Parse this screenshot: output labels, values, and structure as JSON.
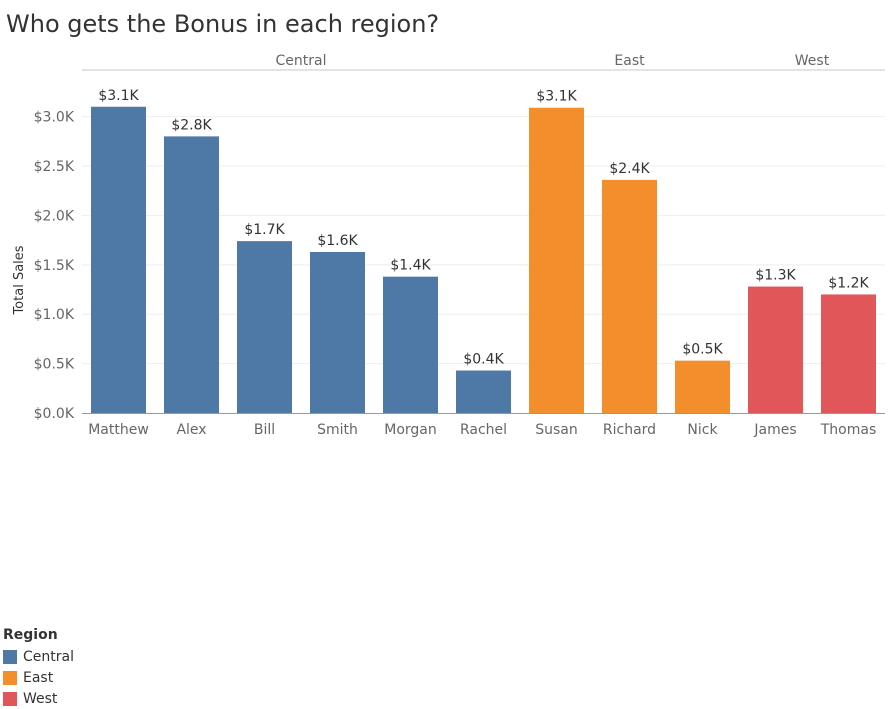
{
  "chart_data": {
    "type": "bar",
    "title": "Who gets the Bonus in each region?",
    "ylabel": "Total Sales",
    "xlabel": "",
    "ylim": [
      0,
      3.3
    ],
    "yticks": [
      "$0.0K",
      "$0.5K",
      "$1.0K",
      "$1.5K",
      "$2.0K",
      "$2.5K",
      "$3.0K"
    ],
    "ytick_values": [
      0,
      0.5,
      1.0,
      1.5,
      2.0,
      2.5,
      3.0
    ],
    "value_unit": "thousands of dollars",
    "grid": true,
    "groups": [
      {
        "name": "Central",
        "color": "#4e79a7",
        "bars": [
          {
            "category": "Matthew",
            "value": 3.1,
            "label": "$3.1K"
          },
          {
            "category": "Alex",
            "value": 2.8,
            "label": "$2.8K"
          },
          {
            "category": "Bill",
            "value": 1.74,
            "label": "$1.7K"
          },
          {
            "category": "Smith",
            "value": 1.63,
            "label": "$1.6K"
          },
          {
            "category": "Morgan",
            "value": 1.38,
            "label": "$1.4K"
          },
          {
            "category": "Rachel",
            "value": 0.43,
            "label": "$0.4K"
          }
        ]
      },
      {
        "name": "East",
        "color": "#f28e2b",
        "bars": [
          {
            "category": "Susan",
            "value": 3.09,
            "label": "$3.1K"
          },
          {
            "category": "Richard",
            "value": 2.36,
            "label": "$2.4K"
          },
          {
            "category": "Nick",
            "value": 0.53,
            "label": "$0.5K"
          }
        ]
      },
      {
        "name": "West",
        "color": "#e15759",
        "bars": [
          {
            "category": "James",
            "value": 1.28,
            "label": "$1.3K"
          },
          {
            "category": "Thomas",
            "value": 1.2,
            "label": "$1.2K"
          }
        ]
      }
    ],
    "legend": {
      "title": "Region",
      "position": "bottom-left",
      "items": [
        {
          "label": "Central",
          "color": "#4e79a7"
        },
        {
          "label": "East",
          "color": "#f28e2b"
        },
        {
          "label": "West",
          "color": "#e15759"
        }
      ]
    }
  }
}
